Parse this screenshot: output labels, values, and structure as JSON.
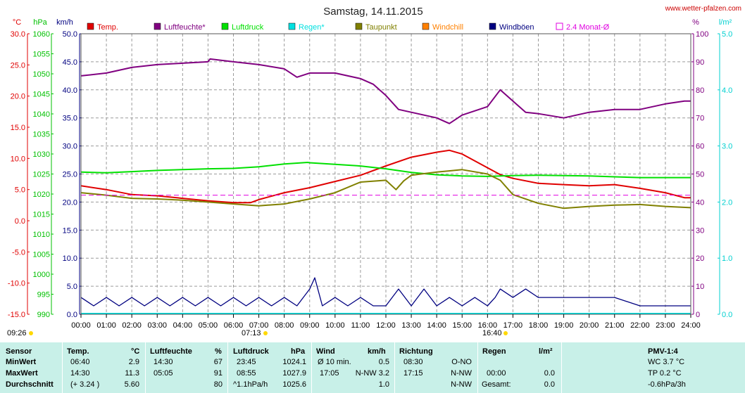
{
  "page": {
    "title": "Samstag, 14.11.2015",
    "source": "www.wetter-pfalzen.com",
    "sunrise_label": "07:13",
    "sunset_label": "16:40",
    "start_label": "09:26"
  },
  "legend": [
    {
      "label": "Temp.",
      "color": "#e00000"
    },
    {
      "label": "Luftfeuchte*",
      "color": "#800080"
    },
    {
      "label": "Luftdruck",
      "color": "#00e000"
    },
    {
      "label": "Regen*",
      "color": "#00e0e0"
    },
    {
      "label": "Taupunkt",
      "color": "#808000"
    },
    {
      "label": "Windchill",
      "color": "#ff8000"
    },
    {
      "label": "Windböen",
      "color": "#000080"
    },
    {
      "label": "2.4 Monat-Ø",
      "color": "#e000e0"
    }
  ],
  "axes": {
    "temp": {
      "unit": "°C",
      "color": "#e00000",
      "ticks": [
        "30.0",
        "25.0",
        "20.0",
        "15.0",
        "10.0",
        "5.0",
        "0.0",
        "-5.0",
        "-10.0",
        "-15.0"
      ]
    },
    "pressure": {
      "unit": "hPa",
      "color": "#00c000",
      "ticks": [
        "1060",
        "1055",
        "1050",
        "1045",
        "1040",
        "1035",
        "1030",
        "1025",
        "1020",
        "1015",
        "1010",
        "1005",
        "1000",
        "995",
        "990"
      ]
    },
    "wind": {
      "unit": "km/h",
      "color": "#000080",
      "ticks": [
        "50.0",
        "45.0",
        "40.0",
        "35.0",
        "30.0",
        "25.0",
        "20.0",
        "15.0",
        "10.0",
        "5.0",
        "0.0"
      ]
    },
    "humidity": {
      "unit": "%",
      "color": "#800080",
      "ticks": [
        "100",
        "90",
        "80",
        "70",
        "60",
        "50",
        "40",
        "30",
        "20",
        "10",
        "0"
      ]
    },
    "rain": {
      "unit": "l/m²",
      "color": "#00d0d0",
      "ticks": [
        "5.0",
        "4.0",
        "3.0",
        "2.0",
        "1.0",
        "0.0"
      ]
    }
  },
  "chart_data": {
    "type": "line",
    "title": "Samstag, 14.11.2015",
    "x_ticks": [
      "00:00",
      "01:00",
      "02:00",
      "03:00",
      "04:00",
      "05:00",
      "06:00",
      "07:00",
      "08:00",
      "09:00",
      "10:00",
      "11:00",
      "12:00",
      "13:00",
      "14:00",
      "15:00",
      "16:00",
      "17:00",
      "18:00",
      "19:00",
      "20:00",
      "21:00",
      "22:00",
      "23:00",
      "24:00"
    ],
    "grid": true,
    "series": [
      {
        "name": "Temp.",
        "axis": "temp",
        "unit": "°C",
        "color": "#e00000",
        "x": [
          0,
          1,
          2,
          3,
          4,
          5,
          6,
          6.67,
          7,
          8,
          9,
          10,
          11,
          12,
          13,
          14,
          14.5,
          15,
          16,
          16.5,
          17,
          18,
          19,
          20,
          21,
          22,
          23,
          23.75,
          24
        ],
        "y": [
          5.6,
          5.0,
          4.2,
          4.0,
          3.6,
          3.2,
          2.9,
          2.9,
          3.4,
          4.5,
          5.3,
          6.3,
          7.3,
          8.8,
          10.2,
          11.0,
          11.3,
          10.7,
          8.5,
          7.4,
          6.8,
          6.0,
          5.8,
          5.6,
          5.8,
          5.2,
          4.5,
          3.7,
          3.7
        ]
      },
      {
        "name": "Luftfeuchte*",
        "axis": "humidity",
        "unit": "%",
        "color": "#800080",
        "x": [
          0,
          1,
          2,
          3,
          4,
          5,
          5.08,
          6,
          7,
          8,
          8.5,
          9,
          10,
          11,
          11.5,
          12,
          12.5,
          13,
          13.5,
          14,
          14.5,
          15,
          16,
          16.5,
          17,
          17.5,
          18,
          19,
          20,
          21,
          22,
          23,
          23.75,
          24
        ],
        "y": [
          85,
          86,
          88,
          89,
          89.5,
          90,
          91,
          90,
          89,
          87.5,
          84.5,
          86,
          86,
          84,
          82,
          78,
          73,
          72,
          71,
          70,
          68,
          71,
          74,
          80,
          76,
          72,
          71.5,
          70,
          72,
          73,
          73,
          75,
          76,
          76
        ]
      },
      {
        "name": "Luftdruck",
        "axis": "pressure",
        "unit": "hPa",
        "color": "#00e000",
        "x": [
          0,
          1,
          2,
          3,
          4,
          5,
          6,
          7,
          8,
          8.92,
          9,
          10,
          11,
          12,
          13,
          14,
          15,
          16,
          17,
          18,
          19,
          20,
          21,
          22,
          23,
          23.75,
          24
        ],
        "y": [
          1025.5,
          1025.3,
          1025.6,
          1025.9,
          1026.1,
          1026.3,
          1026.4,
          1026.8,
          1027.5,
          1027.9,
          1027.8,
          1027.4,
          1027.0,
          1026.3,
          1025.4,
          1024.8,
          1024.5,
          1024.4,
          1024.6,
          1024.7,
          1024.6,
          1024.5,
          1024.3,
          1024.1,
          1024.1,
          1024.1,
          1024.1
        ]
      },
      {
        "name": "Taupunkt",
        "axis": "temp",
        "unit": "°C",
        "color": "#808000",
        "x": [
          0,
          1,
          2,
          3,
          4,
          5,
          6,
          7,
          8,
          9,
          10,
          11,
          12,
          12.4,
          12.7,
          13,
          14,
          15,
          16,
          16.5,
          17,
          18,
          19,
          20,
          21,
          22,
          23,
          24
        ],
        "y": [
          4.5,
          4.1,
          3.6,
          3.5,
          3.3,
          3.0,
          2.7,
          2.4,
          2.7,
          3.5,
          4.5,
          6.2,
          6.5,
          5.0,
          6.4,
          7.3,
          7.8,
          8.2,
          7.5,
          6.5,
          4.2,
          2.8,
          2.0,
          2.3,
          2.5,
          2.6,
          2.3,
          2.1
        ]
      },
      {
        "name": "Windböen",
        "axis": "wind",
        "unit": "km/h",
        "color": "#000080",
        "x": [
          0,
          0.5,
          1,
          1.5,
          2,
          2.5,
          3,
          3.5,
          4,
          4.5,
          5,
          5.5,
          6,
          6.5,
          7,
          7.5,
          8,
          8.5,
          9,
          9.2,
          9.5,
          10,
          10.5,
          11,
          11.5,
          12,
          12.5,
          13,
          13.5,
          14,
          14.5,
          15,
          15.5,
          16,
          16.3,
          16.5,
          17,
          17.5,
          18,
          19,
          20,
          21,
          22,
          23,
          24
        ],
        "y": [
          3.0,
          1.5,
          3.0,
          1.5,
          3.0,
          1.5,
          3.0,
          1.5,
          3.0,
          1.5,
          3.0,
          1.5,
          3.0,
          1.5,
          3.0,
          1.5,
          3.0,
          1.5,
          4.5,
          6.5,
          1.5,
          3.0,
          1.5,
          3.0,
          1.5,
          1.5,
          4.5,
          1.5,
          4.5,
          1.5,
          3.0,
          1.5,
          3.0,
          1.5,
          3.0,
          4.5,
          3.0,
          4.5,
          3.0,
          3.0,
          3.0,
          3.0,
          1.5,
          1.5,
          1.5
        ]
      },
      {
        "name": "2.4 Monat-Ø",
        "axis": "temp",
        "unit": "°C",
        "color": "#e000e0",
        "x": [
          0,
          24
        ],
        "y": [
          4.1,
          4.1
        ]
      }
    ]
  },
  "table": {
    "headers": {
      "sensor": "Sensor",
      "temp": "Temp.",
      "temp_unit": "°C",
      "hum": "Luftfeuchte",
      "hum_unit": "%",
      "press": "Luftdruck",
      "press_unit": "hPa",
      "wind": "Wind",
      "wind_unit": "km/h",
      "dir": "Richtung",
      "rain": "Regen",
      "rain_unit": "l/m²",
      "pmv": "PMV-1:4"
    },
    "rows": [
      {
        "label": "MinWert",
        "temp_time": "06:40",
        "temp_val": "2.9",
        "hum_time": "14:30",
        "hum_val": "67",
        "press_time": "23:45",
        "press_val": "1024.1",
        "wind_time": "Ø 10 min.",
        "wind_val": "0.5",
        "dir_time": "08:30",
        "dir_val": "O-NO",
        "rain_time": "",
        "rain_val": "",
        "pmv": "WC 3.7 °C"
      },
      {
        "label": "MaxWert",
        "temp_time": "14:30",
        "temp_val": "11.3",
        "hum_time": "05:05",
        "hum_val": "91",
        "press_time": "08:55",
        "press_val": "1027.9",
        "wind_time": "17:05",
        "wind_val": "N-NW 3.2",
        "dir_time": "17:15",
        "dir_val": "N-NW",
        "rain_time": "00:00",
        "rain_val": "0.0",
        "pmv": "TP 0.2 °C"
      },
      {
        "label": "Durchschnitt",
        "temp_time": "(+ 3.24 )",
        "temp_val": "5.60",
        "hum_time": "",
        "hum_val": "80",
        "press_time": "^1.1hPa/h",
        "press_val": "1025.6",
        "wind_time": "",
        "wind_val": "1.0",
        "dir_time": "",
        "dir_val": "N-NW",
        "rain_time": "Gesamt:",
        "rain_val": "0.0",
        "pmv": "-0.6hPa/3h"
      }
    ]
  }
}
